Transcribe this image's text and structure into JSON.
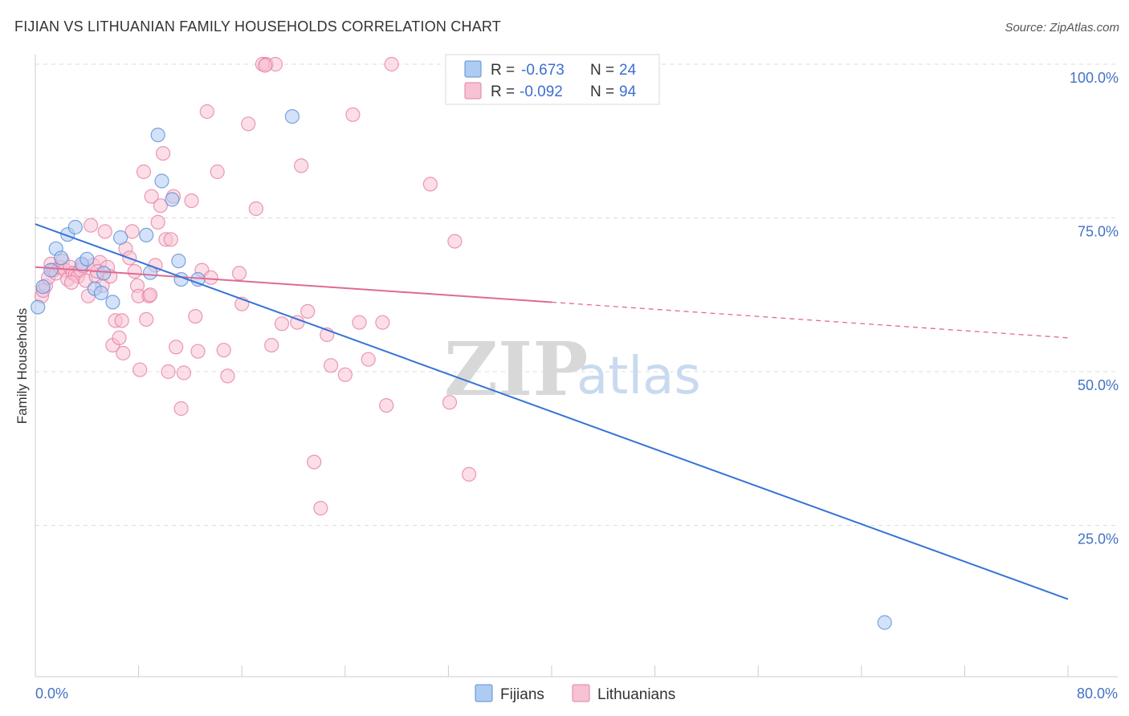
{
  "chart_data": {
    "type": "scatter",
    "title": "FIJIAN VS LITHUANIAN FAMILY HOUSEHOLDS CORRELATION CHART",
    "source": "Source: ZipAtlas.com",
    "xlabel": "",
    "ylabel": "Family Households",
    "xlim": [
      0,
      80
    ],
    "ylim": [
      0,
      102
    ],
    "x_tick_labels": [
      "0.0%",
      "80.0%"
    ],
    "y_ticks": [
      25,
      50,
      75,
      100
    ],
    "y_tick_labels": [
      "25.0%",
      "50.0%",
      "75.0%",
      "100.0%"
    ],
    "grid": true,
    "watermark": {
      "zip": "ZIP",
      "atlas": "atlas"
    },
    "legend": {
      "placement": "top-center",
      "entries": [
        {
          "series": "Fijians",
          "r_label": "R =",
          "r_value": "-0.673",
          "n_label": "N =",
          "n_value": "24"
        },
        {
          "series": "Lithuanians",
          "r_label": "R =",
          "r_value": "-0.092",
          "n_label": "N =",
          "n_value": "94"
        }
      ]
    },
    "bottom_legend": [
      "Fijians",
      "Lithuanians"
    ],
    "colors": {
      "fijians_fill": "#aecbf2",
      "fijians_stroke": "#5b8fd6",
      "fijians_line": "#3673d6",
      "lithuanians_fill": "#f7c2d3",
      "lithuanians_stroke": "#e67fa2",
      "lithuanians_line": "#e06a92",
      "axis_label": "#4472c4",
      "grid": "#dddddd"
    },
    "series": [
      {
        "name": "Fijians",
        "trend": {
          "x0": 0,
          "y0": 74,
          "x1": 80,
          "y1": 13
        },
        "points": [
          [
            0.2,
            60.5
          ],
          [
            0.6,
            63.8
          ],
          [
            1.2,
            66.5
          ],
          [
            1.6,
            70
          ],
          [
            2.0,
            68.5
          ],
          [
            2.5,
            72.3
          ],
          [
            3.1,
            73.5
          ],
          [
            3.6,
            67.5
          ],
          [
            4.0,
            68.3
          ],
          [
            4.6,
            63.5
          ],
          [
            5.1,
            62.8
          ],
          [
            5.3,
            66.0
          ],
          [
            6.0,
            61.3
          ],
          [
            6.6,
            71.8
          ],
          [
            8.6,
            72.2
          ],
          [
            8.9,
            66.1
          ],
          [
            9.5,
            88.5
          ],
          [
            9.8,
            81.0
          ],
          [
            10.6,
            78.0
          ],
          [
            11.1,
            68.0
          ],
          [
            11.3,
            65.0
          ],
          [
            12.6,
            65.0
          ],
          [
            19.9,
            91.5
          ],
          [
            65.8,
            9.2
          ]
        ]
      },
      {
        "name": "Lithuanians",
        "trend": {
          "x0": 0,
          "y0": 67,
          "x1": 40,
          "y1": 61.3
        },
        "trend_dashed": {
          "x0": 40,
          "y0": 61.3,
          "x1": 80,
          "y1": 55.5
        },
        "points": [
          [
            0.5,
            62.3
          ],
          [
            0.6,
            63.2
          ],
          [
            0.8,
            64.0
          ],
          [
            1.0,
            65.3
          ],
          [
            1.2,
            67.5
          ],
          [
            1.4,
            66.5
          ],
          [
            1.6,
            66.0
          ],
          [
            1.9,
            67.0
          ],
          [
            2.1,
            68.0
          ],
          [
            2.3,
            66.5
          ],
          [
            2.5,
            65.0
          ],
          [
            2.7,
            67.0
          ],
          [
            2.9,
            66.0
          ],
          [
            3.1,
            65.8
          ],
          [
            3.3,
            65.5
          ],
          [
            3.5,
            66.5
          ],
          [
            3.7,
            67.2
          ],
          [
            3.9,
            64.8
          ],
          [
            4.1,
            62.3
          ],
          [
            4.3,
            73.8
          ],
          [
            4.5,
            67.3
          ],
          [
            4.7,
            65.5
          ],
          [
            5.0,
            67.8
          ],
          [
            5.2,
            64.0
          ],
          [
            5.4,
            72.8
          ],
          [
            5.6,
            67.0
          ],
          [
            5.8,
            65.5
          ],
          [
            6.0,
            54.3
          ],
          [
            6.2,
            58.3
          ],
          [
            6.5,
            55.5
          ],
          [
            6.7,
            58.3
          ],
          [
            6.8,
            53.0
          ],
          [
            7.0,
            70.0
          ],
          [
            7.3,
            68.5
          ],
          [
            7.5,
            72.8
          ],
          [
            7.7,
            66.3
          ],
          [
            7.9,
            64.0
          ],
          [
            8.0,
            62.3
          ],
          [
            8.1,
            50.3
          ],
          [
            8.4,
            82.5
          ],
          [
            8.6,
            58.5
          ],
          [
            8.8,
            62.3
          ],
          [
            9.0,
            78.5
          ],
          [
            9.3,
            67.3
          ],
          [
            9.5,
            74.3
          ],
          [
            9.7,
            77.0
          ],
          [
            9.9,
            85.5
          ],
          [
            10.1,
            71.5
          ],
          [
            10.3,
            50.0
          ],
          [
            10.5,
            71.5
          ],
          [
            10.7,
            78.5
          ],
          [
            10.9,
            54.0
          ],
          [
            11.3,
            44.0
          ],
          [
            11.5,
            49.8
          ],
          [
            12.1,
            77.8
          ],
          [
            12.4,
            59.0
          ],
          [
            12.6,
            53.3
          ],
          [
            12.9,
            66.5
          ],
          [
            13.3,
            92.3
          ],
          [
            13.6,
            65.3
          ],
          [
            14.1,
            82.5
          ],
          [
            14.6,
            53.5
          ],
          [
            14.9,
            49.3
          ],
          [
            15.8,
            66.0
          ],
          [
            16.0,
            61.0
          ],
          [
            16.5,
            90.3
          ],
          [
            17.1,
            76.5
          ],
          [
            17.6,
            100.0
          ],
          [
            17.9,
            100.0
          ],
          [
            18.6,
            100.0
          ],
          [
            18.3,
            54.3
          ],
          [
            19.1,
            57.8
          ],
          [
            20.3,
            58.0
          ],
          [
            20.6,
            83.5
          ],
          [
            21.1,
            59.8
          ],
          [
            21.6,
            35.3
          ],
          [
            22.1,
            27.8
          ],
          [
            22.6,
            56.0
          ],
          [
            22.9,
            51.0
          ],
          [
            24.0,
            49.5
          ],
          [
            24.6,
            91.8
          ],
          [
            25.1,
            58.0
          ],
          [
            25.8,
            52.0
          ],
          [
            26.9,
            58.0
          ],
          [
            27.2,
            44.5
          ],
          [
            27.6,
            100.0
          ],
          [
            30.6,
            80.5
          ],
          [
            32.1,
            45.0
          ],
          [
            32.5,
            71.2
          ],
          [
            33.6,
            33.3
          ],
          [
            17.8,
            99.8
          ],
          [
            8.9,
            62.5
          ],
          [
            4.8,
            66.3
          ],
          [
            2.8,
            64.5
          ]
        ]
      }
    ]
  }
}
